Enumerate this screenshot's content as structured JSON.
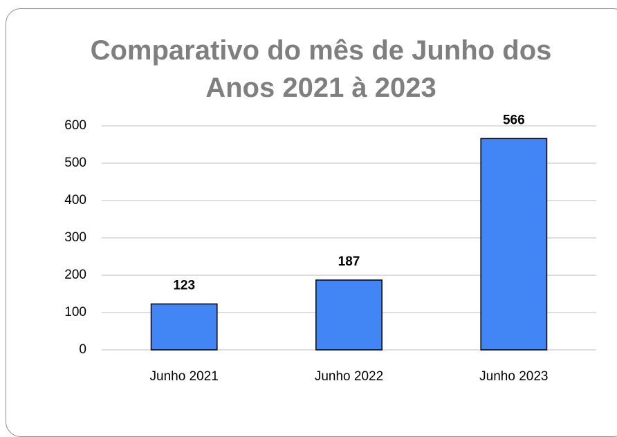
{
  "chart_data": {
    "type": "bar",
    "title": "Comparativo do mês de Junho dos Anos 2021 à 2023",
    "categories": [
      "Junho 2021",
      "Junho 2022",
      "Junho 2023"
    ],
    "values": [
      123,
      187,
      566
    ],
    "color": "#4285f4",
    "ylim": [
      0,
      600
    ],
    "yticks": [
      0,
      100,
      200,
      300,
      400,
      500,
      600
    ],
    "grid": true
  }
}
